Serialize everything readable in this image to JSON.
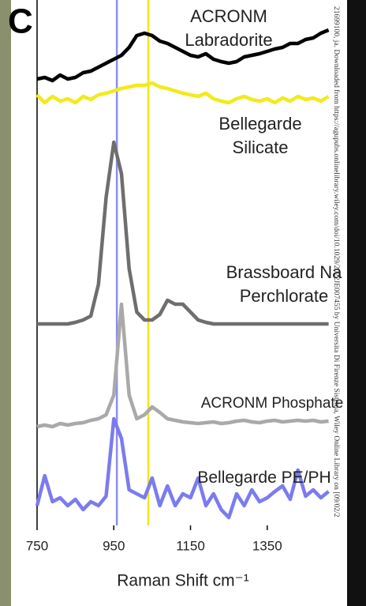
{
  "panel_label": "C",
  "side_text": "21699100, ja. Downloaded from https://agupubs.onlinelibrary.wiley.com/doi/10.1029/2022JE007455 by Universita Di Firenze Sistema, Wiley Online Library on [09/02/2",
  "chart_data": {
    "type": "line",
    "xlabel": "Raman Shift cm⁻¹",
    "xlim": [
      750,
      1515
    ],
    "xticks": [
      750,
      950,
      1150,
      1350
    ],
    "ylim": [
      0,
      665
    ],
    "vlines": [
      {
        "x": 958,
        "color": "#8c8cf0"
      },
      {
        "x": 1040,
        "color": "#f0e51a"
      }
    ],
    "x": [
      750,
      770,
      790,
      810,
      830,
      850,
      870,
      890,
      910,
      930,
      950,
      970,
      990,
      1010,
      1030,
      1050,
      1070,
      1090,
      1110,
      1130,
      1150,
      1170,
      1190,
      1210,
      1230,
      1250,
      1270,
      1290,
      1310,
      1330,
      1350,
      1370,
      1390,
      1410,
      1430,
      1450,
      1470,
      1490,
      1510
    ],
    "series": [
      {
        "name": "ACRONM Labradorite",
        "color": "#000000",
        "values": [
          565,
          567,
          563,
          570,
          565,
          567,
          573,
          575,
          580,
          585,
          590,
          595,
          605,
          620,
          623,
          620,
          613,
          610,
          605,
          600,
          595,
          593,
          597,
          590,
          587,
          585,
          587,
          593,
          595,
          597,
          600,
          603,
          605,
          610,
          610,
          615,
          617,
          623,
          627
        ]
      },
      {
        "name": "Bellegarde Silicate",
        "color": "#f2ea1c",
        "values": [
          545,
          535,
          543,
          537,
          540,
          535,
          543,
          539,
          545,
          547,
          550,
          553,
          555,
          557,
          557,
          560,
          555,
          553,
          550,
          547,
          545,
          543,
          547,
          540,
          537,
          535,
          540,
          543,
          539,
          537,
          540,
          535,
          541,
          537,
          543,
          539,
          541,
          537,
          543
        ]
      },
      {
        "name": "Brassboard Na Perchlorate",
        "color": "#6e6e6e",
        "values": [
          255,
          255,
          255,
          255,
          255,
          257,
          260,
          265,
          305,
          415,
          485,
          445,
          325,
          270,
          260,
          260,
          267,
          285,
          280,
          280,
          270,
          260,
          257,
          255,
          255,
          255,
          255,
          255,
          255,
          255,
          255,
          255,
          255,
          255,
          255,
          255,
          255,
          255,
          255
        ]
      },
      {
        "name": "ACRONM Phosphate",
        "color": "#a9a9a9",
        "values": [
          125,
          127,
          125,
          129,
          127,
          129,
          130,
          133,
          135,
          140,
          165,
          280,
          165,
          135,
          140,
          150,
          143,
          135,
          133,
          131,
          130,
          129,
          130,
          131,
          129,
          130,
          132,
          133,
          131,
          130,
          132,
          133,
          131,
          132,
          133,
          132,
          133,
          131,
          132
        ]
      },
      {
        "name": "Bellegarde PE/PH",
        "color": "#7b7bf0",
        "values": [
          25,
          63,
          30,
          35,
          25,
          33,
          20,
          30,
          25,
          37,
          135,
          110,
          45,
          40,
          35,
          60,
          25,
          50,
          25,
          40,
          35,
          60,
          25,
          40,
          20,
          10,
          40,
          25,
          45,
          30,
          35,
          43,
          50,
          33,
          70,
          37,
          45,
          35,
          43
        ]
      }
    ]
  }
}
